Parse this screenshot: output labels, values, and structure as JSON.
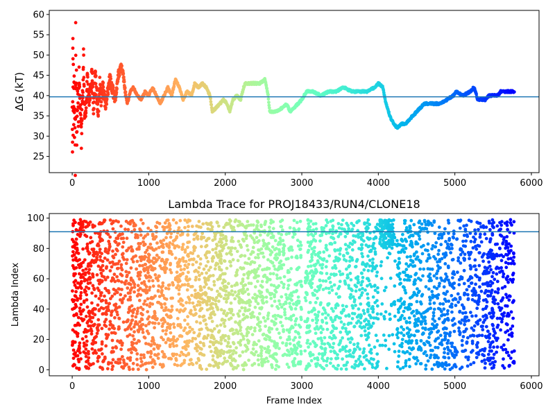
{
  "chart_data": [
    {
      "type": "scatter",
      "title": "",
      "xlabel": "",
      "ylabel": "ΔG (kT)",
      "xlim": [
        -300,
        6100
      ],
      "ylim": [
        21,
        61
      ],
      "xticks": [
        0,
        1000,
        2000,
        3000,
        4000,
        5000,
        6000
      ],
      "yticks": [
        25,
        30,
        35,
        40,
        45,
        50,
        55,
        60
      ],
      "colormap": "rainbow (red at early frames → purple at late frames)",
      "reference_line_y": 39.7,
      "reference_line_color": "#1f77b4",
      "grid": false,
      "series_trace": [
        [
          0,
          38
        ],
        [
          5,
          25
        ],
        [
          8,
          54
        ],
        [
          10,
          52
        ],
        [
          12,
          30
        ],
        [
          15,
          45
        ],
        [
          18,
          35
        ],
        [
          20,
          36
        ],
        [
          25,
          47
        ],
        [
          30,
          32
        ],
        [
          35,
          40
        ],
        [
          40,
          23
        ],
        [
          45,
          57
        ],
        [
          50,
          38
        ],
        [
          55,
          44
        ],
        [
          60,
          29
        ],
        [
          70,
          42
        ],
        [
          80,
          33
        ],
        [
          90,
          46
        ],
        [
          100,
          39
        ],
        [
          120,
          30
        ],
        [
          130,
          37
        ],
        [
          140,
          43
        ],
        [
          150,
          50
        ],
        [
          160,
          36
        ],
        [
          180,
          38
        ],
        [
          200,
          44
        ],
        [
          220,
          39
        ],
        [
          240,
          41
        ],
        [
          260,
          45
        ],
        [
          280,
          37
        ],
        [
          300,
          46
        ],
        [
          320,
          40
        ],
        [
          340,
          36
        ],
        [
          360,
          43
        ],
        [
          380,
          39
        ],
        [
          400,
          42
        ],
        [
          430,
          38
        ],
        [
          460,
          40
        ],
        [
          490,
          44
        ],
        [
          520,
          42
        ],
        [
          560,
          39
        ],
        [
          600,
          45
        ],
        [
          640,
          47
        ],
        [
          660,
          46
        ],
        [
          680,
          43
        ],
        [
          700,
          40
        ],
        [
          720,
          38
        ],
        [
          760,
          41
        ],
        [
          800,
          42
        ],
        [
          850,
          40
        ],
        [
          900,
          39
        ],
        [
          950,
          41
        ],
        [
          1000,
          40
        ],
        [
          1050,
          42
        ],
        [
          1100,
          40
        ],
        [
          1150,
          38
        ],
        [
          1200,
          40
        ],
        [
          1250,
          42
        ],
        [
          1300,
          40
        ],
        [
          1350,
          44
        ],
        [
          1400,
          42
        ],
        [
          1450,
          39
        ],
        [
          1500,
          41
        ],
        [
          1560,
          40
        ],
        [
          1600,
          43
        ],
        [
          1650,
          42
        ],
        [
          1700,
          43
        ],
        [
          1750,
          42
        ],
        [
          1800,
          40
        ],
        [
          1830,
          36
        ],
        [
          1880,
          37
        ],
        [
          1930,
          38
        ],
        [
          1980,
          39
        ],
        [
          2020,
          38
        ],
        [
          2060,
          36
        ],
        [
          2100,
          39
        ],
        [
          2150,
          40
        ],
        [
          2200,
          39
        ],
        [
          2240,
          42
        ],
        [
          2260,
          43
        ],
        [
          2350,
          43
        ],
        [
          2450,
          43
        ],
        [
          2520,
          44
        ],
        [
          2560,
          40
        ],
        [
          2580,
          36
        ],
        [
          2650,
          36
        ],
        [
          2750,
          37
        ],
        [
          2800,
          38
        ],
        [
          2850,
          36
        ],
        [
          2900,
          37
        ],
        [
          2950,
          38
        ],
        [
          3000,
          39
        ],
        [
          3060,
          41
        ],
        [
          3150,
          41
        ],
        [
          3250,
          40
        ],
        [
          3350,
          41
        ],
        [
          3450,
          41
        ],
        [
          3550,
          42
        ],
        [
          3650,
          41
        ],
        [
          3750,
          41
        ],
        [
          3850,
          41
        ],
        [
          3950,
          42
        ],
        [
          4000,
          43
        ],
        [
          4060,
          42
        ],
        [
          4100,
          38
        ],
        [
          4150,
          35
        ],
        [
          4200,
          33
        ],
        [
          4250,
          32
        ],
        [
          4300,
          33
        ],
        [
          4350,
          33
        ],
        [
          4400,
          34
        ],
        [
          4450,
          35
        ],
        [
          4500,
          36
        ],
        [
          4550,
          37
        ],
        [
          4600,
          38
        ],
        [
          4700,
          38
        ],
        [
          4800,
          38
        ],
        [
          4900,
          39
        ],
        [
          4980,
          40
        ],
        [
          5020,
          41
        ],
        [
          5100,
          40
        ],
        [
          5200,
          41
        ],
        [
          5250,
          42
        ],
        [
          5300,
          39
        ],
        [
          5400,
          39
        ],
        [
          5450,
          40
        ],
        [
          5500,
          40
        ],
        [
          5560,
          40
        ],
        [
          5600,
          41
        ],
        [
          5700,
          41
        ],
        [
          5780,
          41
        ]
      ]
    },
    {
      "type": "scatter",
      "title": "Lambda Trace for PROJ18433/RUN4/CLONE18",
      "xlabel": "Frame Index",
      "ylabel": "Lambda Index",
      "xlim": [
        -300,
        6100
      ],
      "ylim": [
        -4,
        103
      ],
      "xticks": [
        0,
        1000,
        2000,
        3000,
        4000,
        5000,
        6000
      ],
      "yticks": [
        0,
        20,
        40,
        60,
        80,
        100
      ],
      "colormap": "rainbow (red at early frames → purple at late frames)",
      "reference_line_y": 91,
      "reference_line_color": "#1f77b4",
      "grid": false,
      "frames_range": [
        0,
        5780
      ],
      "lambda_range": [
        0,
        99
      ]
    }
  ]
}
